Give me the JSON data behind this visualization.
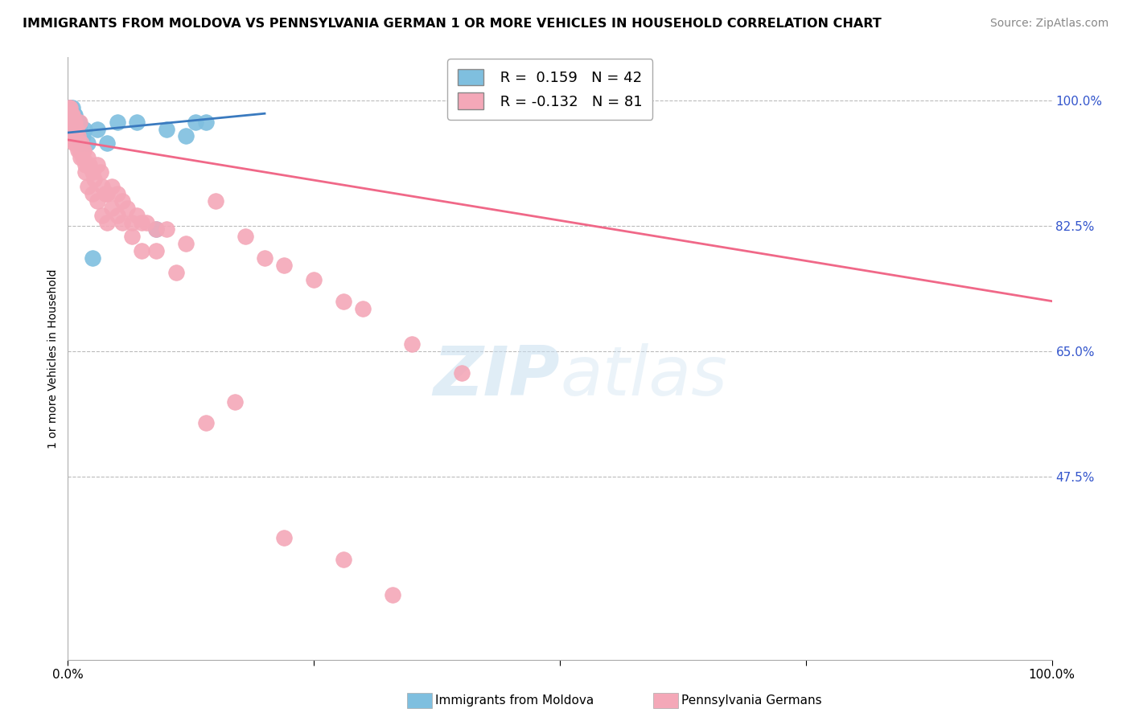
{
  "title": "IMMIGRANTS FROM MOLDOVA VS PENNSYLVANIA GERMAN 1 OR MORE VEHICLES IN HOUSEHOLD CORRELATION CHART",
  "source": "Source: ZipAtlas.com",
  "ylabel": "1 or more Vehicles in Household",
  "watermark_zip": "ZIP",
  "watermark_atlas": "atlas",
  "blue_r": 0.159,
  "blue_n": 42,
  "pink_r": -0.132,
  "pink_n": 81,
  "blue_label": "Immigrants from Moldova",
  "pink_label": "Pennsylvania Germans",
  "blue_color": "#7fbfdf",
  "pink_color": "#f4a8b8",
  "blue_line_color": "#3a7abf",
  "pink_line_color": "#f06888",
  "bg_color": "#ffffff",
  "grid_color": "#bbbbbb",
  "right_tick_color": "#3355cc",
  "title_fontsize": 11.5,
  "source_fontsize": 10,
  "ylabel_fontsize": 10,
  "xlim": [
    0.0,
    1.0
  ],
  "ylim": [
    0.22,
    1.06
  ],
  "right_yticks": [
    0.475,
    0.65,
    0.825,
    1.0
  ],
  "right_yticklabels": [
    "47.5%",
    "65.0%",
    "82.5%",
    "100.0%"
  ],
  "blue_x": [
    0.001,
    0.001,
    0.002,
    0.002,
    0.002,
    0.003,
    0.003,
    0.003,
    0.003,
    0.004,
    0.004,
    0.004,
    0.005,
    0.005,
    0.005,
    0.006,
    0.006,
    0.006,
    0.007,
    0.007,
    0.008,
    0.008,
    0.009,
    0.009,
    0.01,
    0.01,
    0.011,
    0.012,
    0.013,
    0.015,
    0.017,
    0.02,
    0.025,
    0.03,
    0.04,
    0.05,
    0.07,
    0.09,
    0.1,
    0.12,
    0.13,
    0.14
  ],
  "blue_y": [
    0.99,
    0.98,
    0.99,
    0.98,
    0.97,
    0.99,
    0.98,
    0.97,
    0.96,
    0.98,
    0.97,
    0.96,
    0.99,
    0.97,
    0.96,
    0.98,
    0.97,
    0.96,
    0.98,
    0.95,
    0.97,
    0.96,
    0.97,
    0.95,
    0.97,
    0.96,
    0.97,
    0.96,
    0.94,
    0.95,
    0.96,
    0.94,
    0.78,
    0.96,
    0.94,
    0.97,
    0.97,
    0.82,
    0.96,
    0.95,
    0.97,
    0.97
  ],
  "pink_x": [
    0.001,
    0.001,
    0.002,
    0.002,
    0.002,
    0.003,
    0.003,
    0.003,
    0.004,
    0.004,
    0.004,
    0.005,
    0.005,
    0.005,
    0.006,
    0.006,
    0.006,
    0.007,
    0.007,
    0.008,
    0.008,
    0.009,
    0.009,
    0.01,
    0.01,
    0.011,
    0.012,
    0.013,
    0.014,
    0.015,
    0.016,
    0.018,
    0.02,
    0.022,
    0.025,
    0.027,
    0.03,
    0.033,
    0.035,
    0.038,
    0.04,
    0.045,
    0.05,
    0.055,
    0.06,
    0.065,
    0.07,
    0.075,
    0.08,
    0.09,
    0.1,
    0.12,
    0.15,
    0.18,
    0.2,
    0.22,
    0.25,
    0.28,
    0.3,
    0.35,
    0.012,
    0.015,
    0.018,
    0.02,
    0.025,
    0.03,
    0.035,
    0.04,
    0.045,
    0.05,
    0.055,
    0.065,
    0.075,
    0.09,
    0.11,
    0.14,
    0.17,
    0.22,
    0.28,
    0.33,
    0.4
  ],
  "pink_y": [
    0.99,
    0.98,
    0.99,
    0.97,
    0.96,
    0.98,
    0.97,
    0.96,
    0.98,
    0.97,
    0.95,
    0.98,
    0.97,
    0.95,
    0.97,
    0.96,
    0.94,
    0.97,
    0.95,
    0.96,
    0.94,
    0.96,
    0.94,
    0.95,
    0.93,
    0.94,
    0.93,
    0.92,
    0.94,
    0.92,
    0.93,
    0.91,
    0.92,
    0.91,
    0.9,
    0.89,
    0.91,
    0.9,
    0.88,
    0.87,
    0.87,
    0.88,
    0.87,
    0.86,
    0.85,
    0.83,
    0.84,
    0.83,
    0.83,
    0.82,
    0.82,
    0.8,
    0.86,
    0.81,
    0.78,
    0.77,
    0.75,
    0.72,
    0.71,
    0.66,
    0.97,
    0.93,
    0.9,
    0.88,
    0.87,
    0.86,
    0.84,
    0.83,
    0.85,
    0.84,
    0.83,
    0.81,
    0.79,
    0.79,
    0.76,
    0.55,
    0.58,
    0.39,
    0.36,
    0.31,
    0.62
  ],
  "blue_line_x0": 0.0,
  "blue_line_y0": 0.955,
  "blue_line_x1": 0.15,
  "blue_line_y1": 0.975,
  "pink_line_x0": 0.0,
  "pink_line_y0": 0.945,
  "pink_line_x1": 1.0,
  "pink_line_y1": 0.72
}
